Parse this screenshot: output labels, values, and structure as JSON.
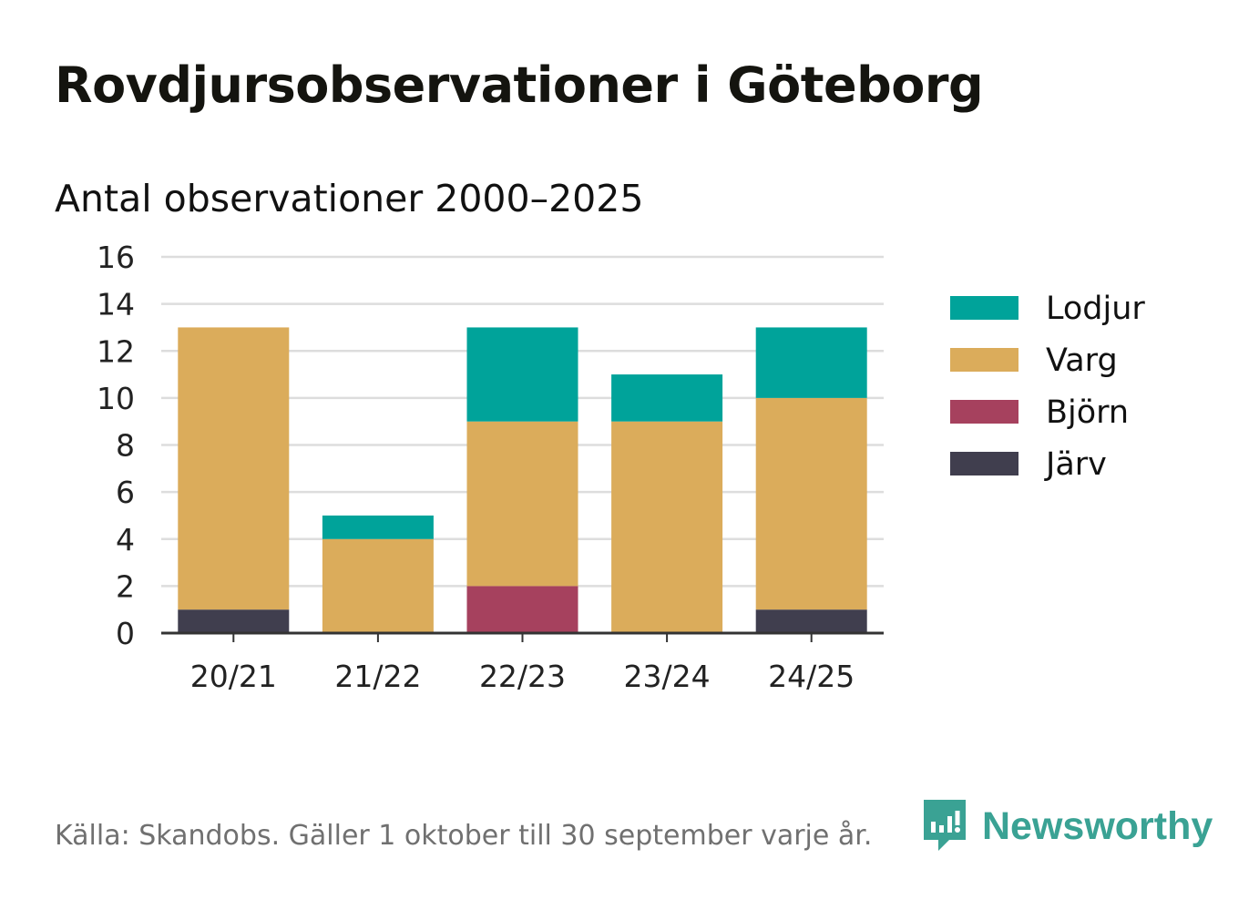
{
  "title": "Rovdjursobservationer i Göteborg",
  "subtitle": "Antal observationer 2000–2025",
  "footer": {
    "source": "Källa: Skandobs. Gäller 1 oktober till 30 september varje år.",
    "brand": "Newsworthy",
    "brand_icon": "newsworthy-logo-icon"
  },
  "colors": {
    "Lodjur": "#00a39a",
    "Varg": "#dbac5b",
    "Björn": "#a6415e",
    "Järv": "#403e4e",
    "grid": "#dddddd",
    "axis": "#333333",
    "brand": "#3aa294"
  },
  "chart_data": {
    "type": "bar",
    "stacked": true,
    "title": "Rovdjursobservationer i Göteborg",
    "subtitle": "Antal observationer 2000–2025",
    "xlabel": "",
    "ylabel": "",
    "ylim": [
      0,
      16
    ],
    "yticks": [
      0,
      2,
      4,
      6,
      8,
      10,
      12,
      14,
      16
    ],
    "grid": true,
    "legend_position": "right",
    "categories": [
      "20/21",
      "21/22",
      "22/23",
      "23/24",
      "24/25"
    ],
    "series": [
      {
        "name": "Järv",
        "values": [
          1,
          0,
          0,
          0,
          1
        ]
      },
      {
        "name": "Björn",
        "values": [
          0,
          0,
          2,
          0,
          0
        ]
      },
      {
        "name": "Varg",
        "values": [
          12,
          4,
          7,
          9,
          9
        ]
      },
      {
        "name": "Lodjur",
        "values": [
          0,
          1,
          4,
          2,
          3
        ]
      }
    ],
    "legend_order": [
      "Lodjur",
      "Varg",
      "Björn",
      "Järv"
    ]
  }
}
